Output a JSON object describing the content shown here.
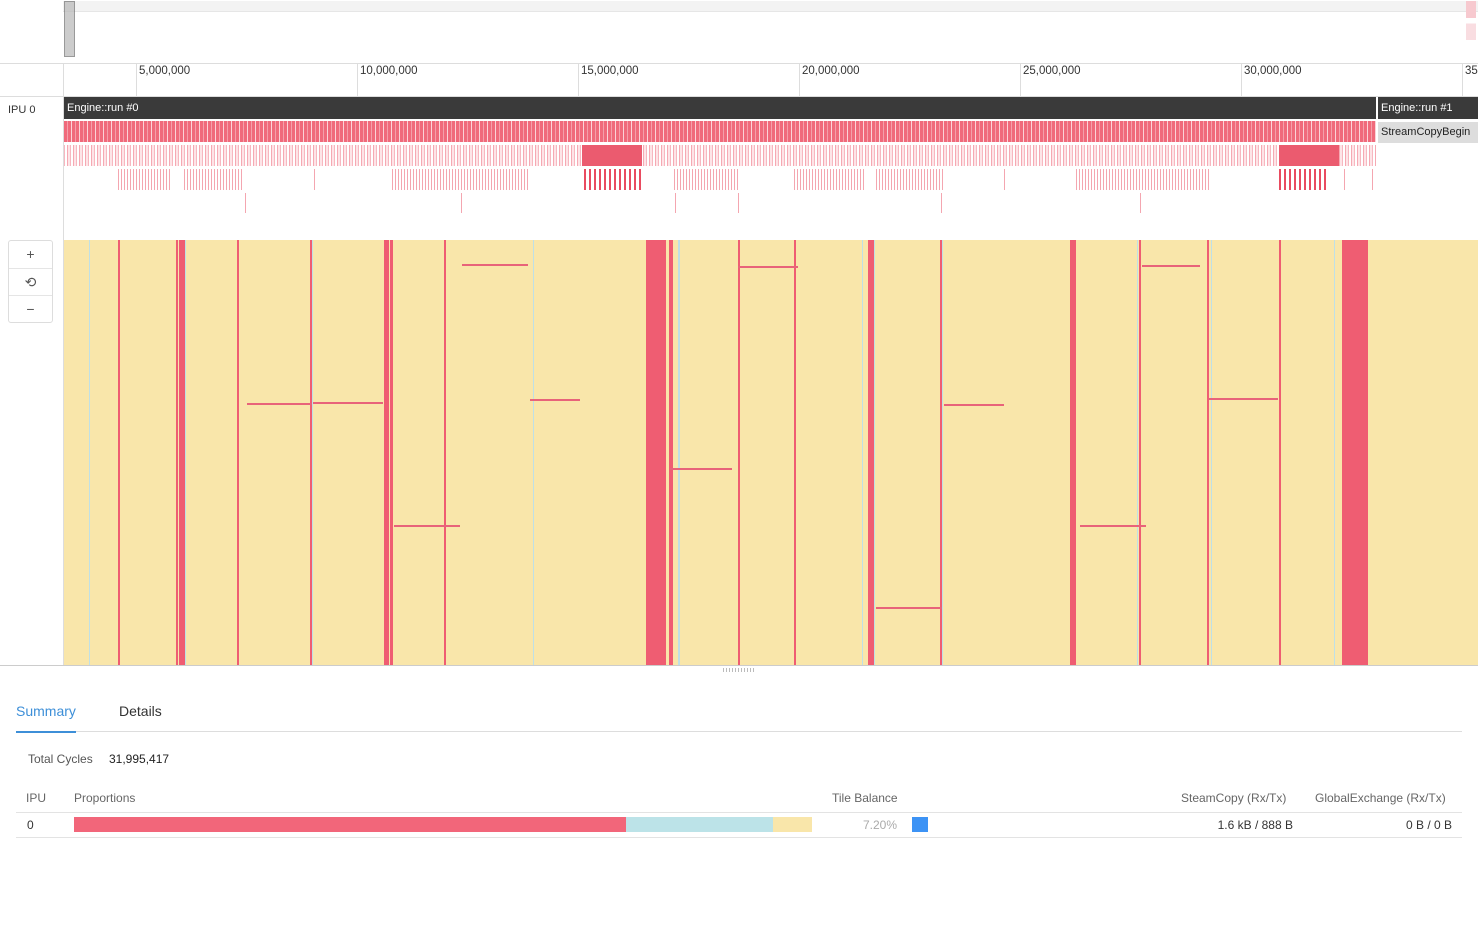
{
  "overview": {},
  "axis": {
    "ticks": [
      "5,000,000",
      "10,000,000",
      "15,000,000",
      "20,000,000",
      "25,000,000",
      "30,000,000",
      "35"
    ]
  },
  "ipu_label": "IPU 0",
  "zoom": {
    "in": "+",
    "reset": "⟲",
    "out": "−"
  },
  "runs": [
    {
      "label": "Engine::run #0"
    },
    {
      "label": "Engine::run #1"
    }
  ],
  "stream_copy_label": "StreamCopyBegin",
  "tabs": {
    "summary": "Summary",
    "details": "Details",
    "active": "summary"
  },
  "summary": {
    "total_cycles_label": "Total Cycles",
    "total_cycles_value": "31,995,417",
    "headers": {
      "ipu": "IPU",
      "proportions": "Proportions",
      "tile_balance": "Tile Balance",
      "steamcopy": "SteamCopy (Rx/Tx)",
      "global_exchange": "GlobalExchange (Rx/Tx)"
    },
    "row": {
      "ipu": "0",
      "proportions": [
        {
          "fraction": 0.748,
          "color": "#f2667a"
        },
        {
          "fraction": 0.199,
          "color": "#bce3e8"
        },
        {
          "fraction": 0.053,
          "color": "#f9e6aa"
        }
      ],
      "tile_balance": "7.20%",
      "tile_balance_color": "#3d93f5",
      "steamcopy": "1.6 kB / 888 B",
      "global_exchange": "0 B / 0 B"
    }
  },
  "colors": {
    "compute": "#f2667a",
    "sync": "#bce3e8",
    "idle": "#f9e6aa",
    "run_bar": "#3a3a3a",
    "accent": "#3d8fd8"
  }
}
